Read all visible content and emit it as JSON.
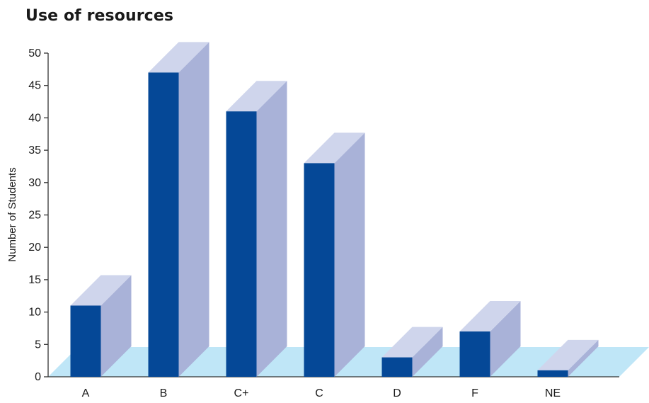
{
  "colors": {
    "bar_front": "#054897",
    "bar_side": "#a9b2d8",
    "bar_top": "#cfd5ec",
    "floor": "#bfe6f7",
    "axis": "#333333"
  },
  "chart_data": {
    "type": "bar",
    "title": "Use of resources",
    "ylabel": "Number of Students",
    "xlabel": "",
    "categories": [
      "A",
      "B",
      "C+",
      "C",
      "D",
      "F",
      "NE"
    ],
    "values": [
      11,
      47,
      41,
      33,
      3,
      7,
      1
    ],
    "ylim": [
      0,
      50
    ],
    "yticks": [
      0,
      5,
      10,
      15,
      20,
      25,
      30,
      35,
      40,
      45,
      50
    ],
    "grid": false,
    "style": "3d-bars-with-floor"
  }
}
